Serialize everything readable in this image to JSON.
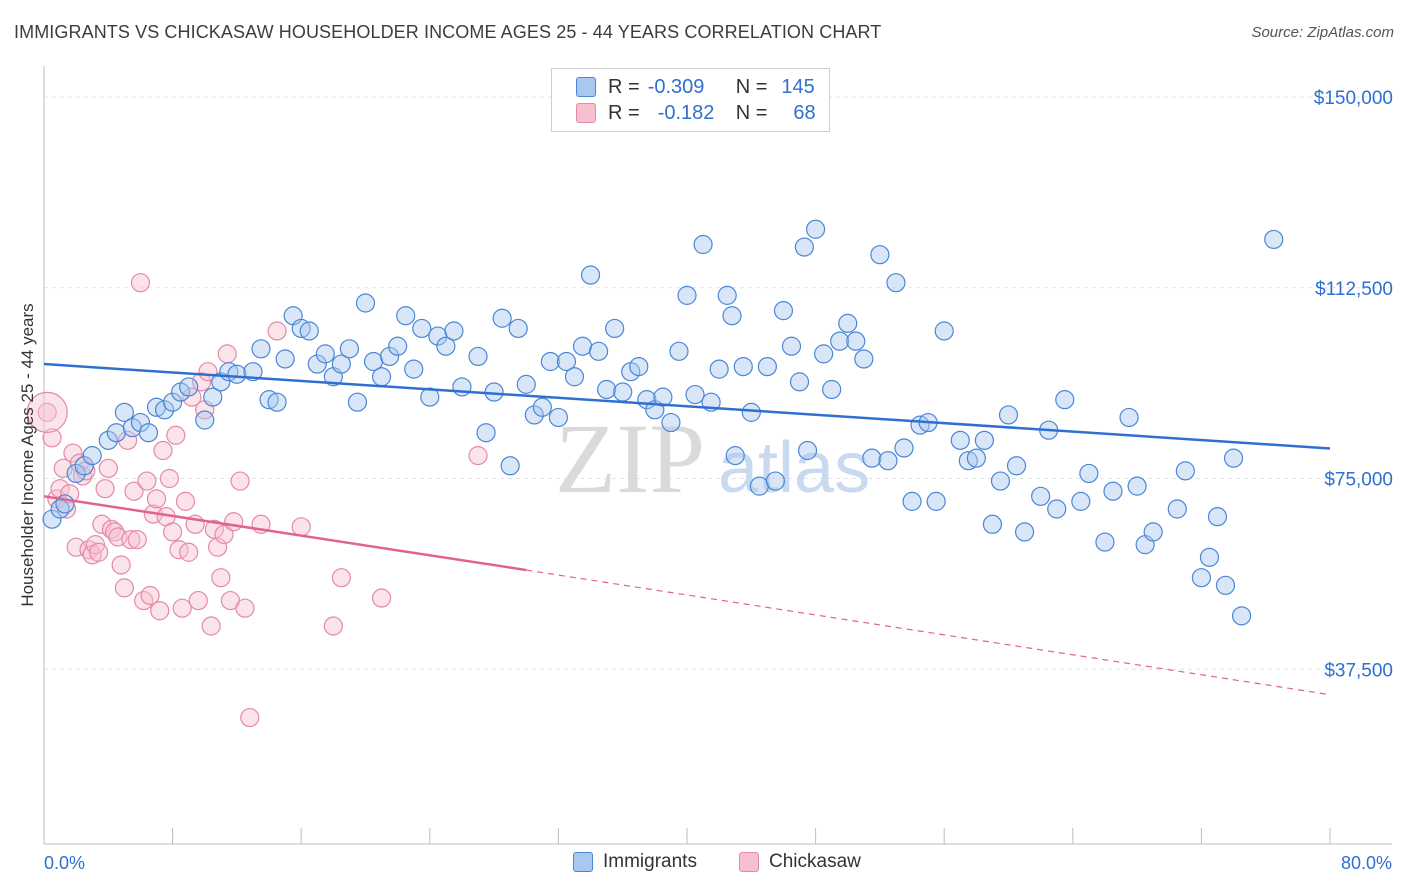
{
  "title": "IMMIGRANTS VS CHICKASAW HOUSEHOLDER INCOME AGES 25 - 44 YEARS CORRELATION CHART",
  "source": "Source: ZipAtlas.com",
  "watermark": {
    "zip": "ZIP",
    "atlas": "atlas"
  },
  "legend": {
    "r_label": "R =",
    "n_label": "N =",
    "rows": [
      {
        "name": "Immigrants",
        "r": "-0.309",
        "n": "145"
      },
      {
        "name": "Chickasaw",
        "r": "-0.182",
        "n": "68"
      }
    ]
  },
  "colors": {
    "immigrants_fill": "#a9c8f0",
    "immigrants_stroke": "#4a87d6",
    "immigrants_line": "#2f6fd0",
    "chickasaw_fill": "#f7c0d0",
    "chickasaw_stroke": "#e58aa6",
    "chickasaw_line": "#e2628e",
    "axis_label": "#2f6fd0",
    "grid": "#e3e3e3"
  },
  "chart_data": {
    "type": "scatter",
    "title": "IMMIGRANTS VS CHICKASAW HOUSEHOLDER INCOME AGES 25 - 44 YEARS CORRELATION CHART",
    "xlabel": "",
    "ylabel": "Householder Income Ages 25 - 44 years",
    "xlim": [
      0,
      80
    ],
    "ylim": [
      0,
      155000
    ],
    "x_tick_labels": [
      "0.0%",
      "80.0%"
    ],
    "y_ticks": [
      37500,
      75000,
      112500,
      150000
    ],
    "y_tick_labels": [
      "$37,500",
      "$75,000",
      "$112,500",
      "$150,000"
    ],
    "grid": true,
    "legend_position": "top-center",
    "series": [
      {
        "name": "Immigrants",
        "trend": {
          "x0": 0,
          "y0": 97500,
          "x1": 80,
          "y1": 80900
        },
        "points": [
          [
            0.5,
            67000
          ],
          [
            1.0,
            69000
          ],
          [
            1.3,
            70000
          ],
          [
            2.0,
            76000
          ],
          [
            2.5,
            77500
          ],
          [
            3.0,
            79500
          ],
          [
            4.0,
            82500
          ],
          [
            4.5,
            84000
          ],
          [
            5.0,
            88000
          ],
          [
            5.5,
            85000
          ],
          [
            6.0,
            86000
          ],
          [
            6.5,
            84000
          ],
          [
            7.0,
            89000
          ],
          [
            7.5,
            88500
          ],
          [
            8.0,
            90000
          ],
          [
            8.5,
            92000
          ],
          [
            9.0,
            93000
          ],
          [
            10.0,
            86500
          ],
          [
            10.5,
            91000
          ],
          [
            11.0,
            94000
          ],
          [
            11.5,
            96000
          ],
          [
            12.0,
            95500
          ],
          [
            13.0,
            96000
          ],
          [
            13.5,
            100500
          ],
          [
            14.0,
            90500
          ],
          [
            14.5,
            90000
          ],
          [
            15.0,
            98500
          ],
          [
            15.5,
            107000
          ],
          [
            16.0,
            104500
          ],
          [
            16.5,
            104000
          ],
          [
            17.0,
            97500
          ],
          [
            17.5,
            99500
          ],
          [
            18.0,
            95000
          ],
          [
            18.5,
            97500
          ],
          [
            19.0,
            100500
          ],
          [
            19.5,
            90000
          ],
          [
            20.0,
            109500
          ],
          [
            20.5,
            98000
          ],
          [
            21.0,
            95000
          ],
          [
            21.5,
            99000
          ],
          [
            22.0,
            101000
          ],
          [
            22.5,
            107000
          ],
          [
            23.0,
            96500
          ],
          [
            23.5,
            104500
          ],
          [
            24.0,
            91000
          ],
          [
            24.5,
            103000
          ],
          [
            25.0,
            101000
          ],
          [
            25.5,
            104000
          ],
          [
            26.0,
            93000
          ],
          [
            27.0,
            99000
          ],
          [
            27.5,
            84000
          ],
          [
            28.0,
            92000
          ],
          [
            28.5,
            106500
          ],
          [
            29.0,
            77500
          ],
          [
            29.5,
            104500
          ],
          [
            30.0,
            93500
          ],
          [
            30.5,
            87500
          ],
          [
            31.0,
            89000
          ],
          [
            31.5,
            98000
          ],
          [
            32.0,
            87000
          ],
          [
            32.5,
            98000
          ],
          [
            33.0,
            95000
          ],
          [
            33.5,
            101000
          ],
          [
            34.0,
            115000
          ],
          [
            34.5,
            100000
          ],
          [
            35.0,
            92500
          ],
          [
            35.5,
            104500
          ],
          [
            36.0,
            92000
          ],
          [
            36.5,
            96000
          ],
          [
            37.0,
            97000
          ],
          [
            37.5,
            90500
          ],
          [
            38.0,
            88500
          ],
          [
            38.5,
            91000
          ],
          [
            39.0,
            86000
          ],
          [
            39.5,
            100000
          ],
          [
            40.0,
            111000
          ],
          [
            40.5,
            91500
          ],
          [
            41.0,
            121000
          ],
          [
            41.5,
            90000
          ],
          [
            42.0,
            96500
          ],
          [
            42.5,
            111000
          ],
          [
            42.8,
            107000
          ],
          [
            43.0,
            79500
          ],
          [
            43.5,
            97000
          ],
          [
            44.0,
            88000
          ],
          [
            44.5,
            73500
          ],
          [
            45.0,
            97000
          ],
          [
            45.5,
            74500
          ],
          [
            46.0,
            108000
          ],
          [
            46.5,
            101000
          ],
          [
            47.0,
            94000
          ],
          [
            47.3,
            120500
          ],
          [
            47.5,
            80500
          ],
          [
            48.0,
            124000
          ],
          [
            48.5,
            99500
          ],
          [
            49.0,
            92500
          ],
          [
            49.5,
            102000
          ],
          [
            50.0,
            105500
          ],
          [
            50.5,
            102000
          ],
          [
            51.0,
            98500
          ],
          [
            51.5,
            79000
          ],
          [
            52.0,
            119000
          ],
          [
            52.5,
            78500
          ],
          [
            53.0,
            113500
          ],
          [
            53.5,
            81000
          ],
          [
            54.0,
            70500
          ],
          [
            54.5,
            85500
          ],
          [
            55.0,
            86000
          ],
          [
            55.5,
            70500
          ],
          [
            56.0,
            104000
          ],
          [
            57.0,
            82500
          ],
          [
            57.5,
            78500
          ],
          [
            58.0,
            79000
          ],
          [
            58.5,
            82500
          ],
          [
            59.0,
            66000
          ],
          [
            59.5,
            74500
          ],
          [
            60.0,
            87500
          ],
          [
            60.5,
            77500
          ],
          [
            61.0,
            64500
          ],
          [
            62.0,
            71500
          ],
          [
            62.5,
            84500
          ],
          [
            63.0,
            69000
          ],
          [
            63.5,
            90500
          ],
          [
            64.5,
            70500
          ],
          [
            65.0,
            76000
          ],
          [
            66.0,
            62500
          ],
          [
            66.5,
            72500
          ],
          [
            67.5,
            87000
          ],
          [
            68.0,
            73500
          ],
          [
            68.5,
            62000
          ],
          [
            69.0,
            64500
          ],
          [
            70.5,
            69000
          ],
          [
            71.0,
            76500
          ],
          [
            72.0,
            55500
          ],
          [
            72.5,
            59500
          ],
          [
            73.0,
            67500
          ],
          [
            73.5,
            54000
          ],
          [
            74.0,
            79000
          ],
          [
            74.5,
            48000
          ],
          [
            76.5,
            122000
          ]
        ]
      },
      {
        "name": "Chickasaw",
        "trend": {
          "x0": 0,
          "y0": 71500,
          "x1": 30,
          "y1": 57000,
          "dash_to_x": 80,
          "dash_to_y": 32500
        },
        "points": [
          [
            0.2,
            88000
          ],
          [
            0.5,
            83000
          ],
          [
            0.8,
            71000
          ],
          [
            1.0,
            73000
          ],
          [
            1.2,
            77000
          ],
          [
            1.4,
            69000
          ],
          [
            1.6,
            72000
          ],
          [
            1.8,
            80000
          ],
          [
            2.0,
            61500
          ],
          [
            2.2,
            78000
          ],
          [
            2.4,
            75500
          ],
          [
            2.6,
            76500
          ],
          [
            2.8,
            61000
          ],
          [
            3.0,
            60000
          ],
          [
            3.2,
            62000
          ],
          [
            3.4,
            60500
          ],
          [
            3.6,
            66000
          ],
          [
            3.8,
            73000
          ],
          [
            4.0,
            77000
          ],
          [
            4.2,
            65000
          ],
          [
            4.4,
            64500
          ],
          [
            4.6,
            63500
          ],
          [
            4.8,
            58000
          ],
          [
            5.0,
            53500
          ],
          [
            5.2,
            82500
          ],
          [
            5.4,
            63000
          ],
          [
            5.6,
            72500
          ],
          [
            5.8,
            63000
          ],
          [
            6.0,
            113500
          ],
          [
            6.2,
            51000
          ],
          [
            6.4,
            74500
          ],
          [
            6.6,
            52000
          ],
          [
            6.8,
            68000
          ],
          [
            7.0,
            71000
          ],
          [
            7.2,
            49000
          ],
          [
            7.4,
            80500
          ],
          [
            7.6,
            67500
          ],
          [
            7.8,
            75000
          ],
          [
            8.0,
            64500
          ],
          [
            8.2,
            83500
          ],
          [
            8.4,
            61000
          ],
          [
            8.6,
            49500
          ],
          [
            8.8,
            70500
          ],
          [
            9.0,
            60500
          ],
          [
            9.2,
            91000
          ],
          [
            9.4,
            66000
          ],
          [
            9.6,
            51000
          ],
          [
            9.8,
            94000
          ],
          [
            10.0,
            88500
          ],
          [
            10.2,
            96000
          ],
          [
            10.4,
            46000
          ],
          [
            10.6,
            65000
          ],
          [
            10.8,
            61500
          ],
          [
            11.0,
            55500
          ],
          [
            11.2,
            64000
          ],
          [
            11.4,
            99500
          ],
          [
            11.6,
            51000
          ],
          [
            11.8,
            66500
          ],
          [
            12.2,
            74500
          ],
          [
            12.5,
            49500
          ],
          [
            12.8,
            28000
          ],
          [
            13.5,
            66000
          ],
          [
            14.5,
            104000
          ],
          [
            16.0,
            65500
          ],
          [
            18.0,
            46000
          ],
          [
            18.5,
            55500
          ],
          [
            21.0,
            51500
          ],
          [
            27.0,
            79500
          ]
        ]
      }
    ]
  }
}
